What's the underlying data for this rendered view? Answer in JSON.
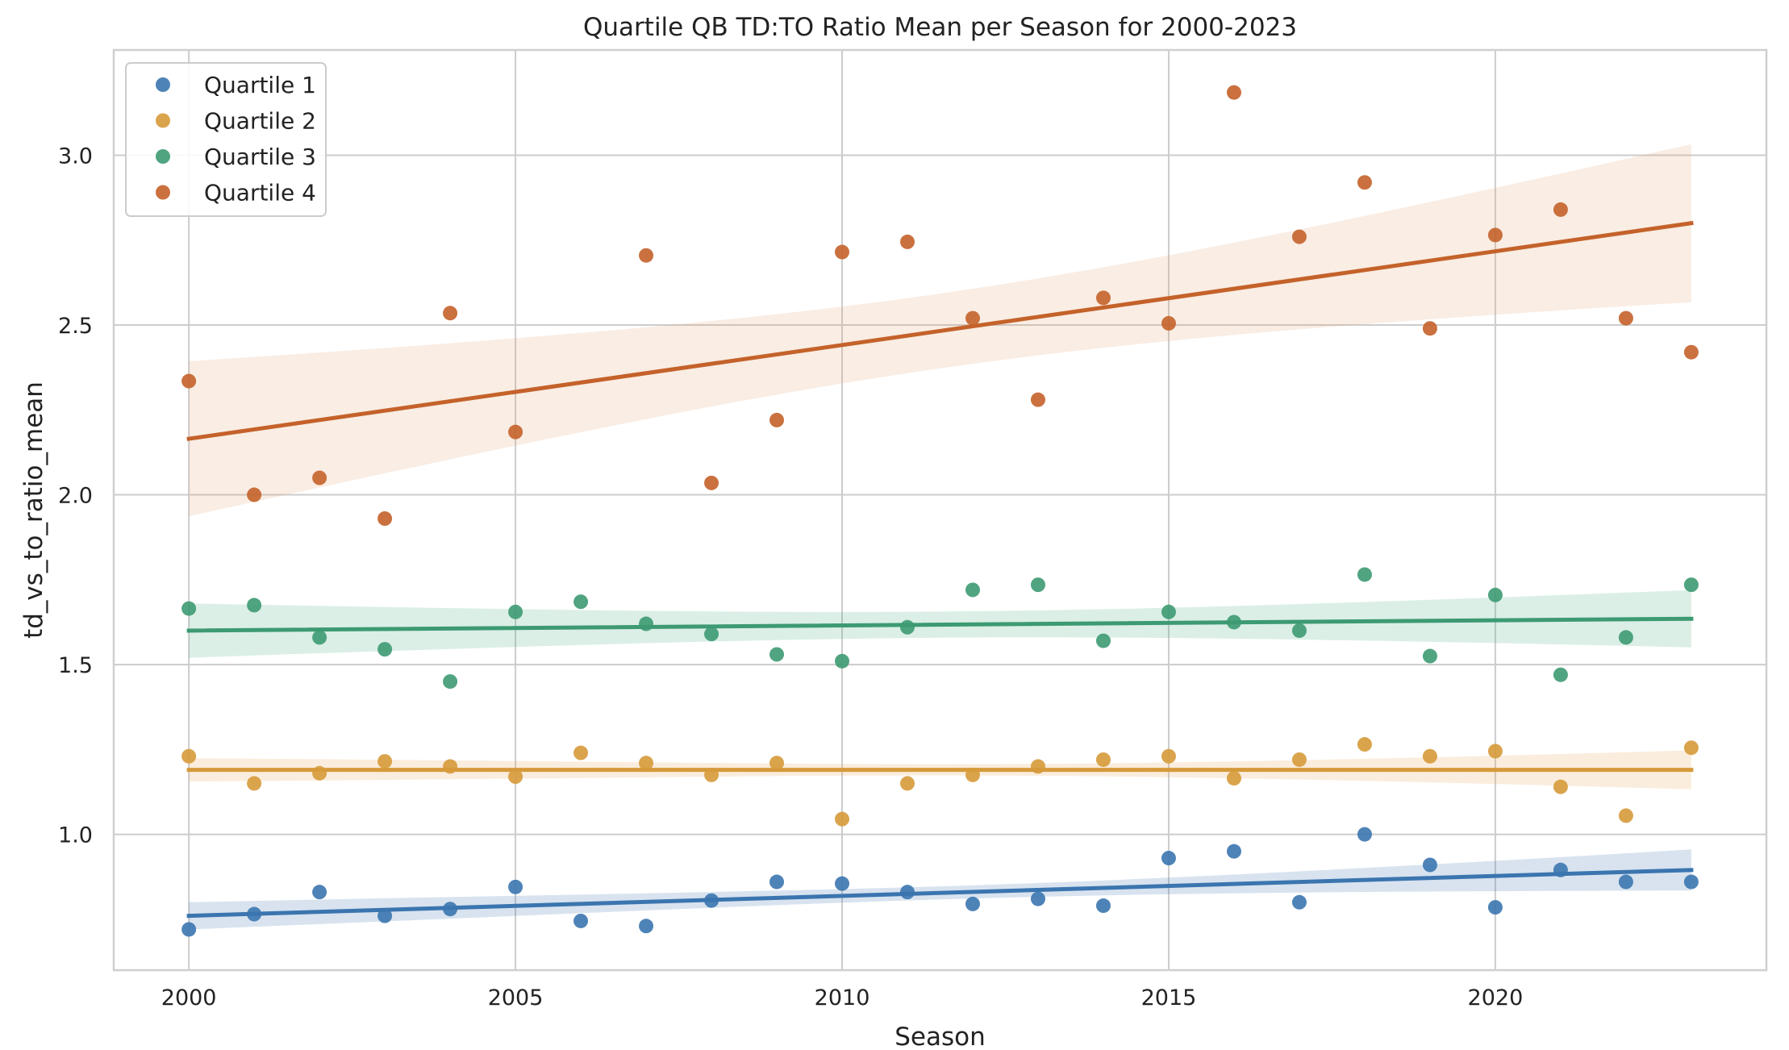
{
  "chart_data": {
    "type": "scatter",
    "title": "Quartile QB TD:TO Ratio Mean per Season for 2000-2023",
    "xlabel": "Season",
    "ylabel": "td_vs_to_ratio_mean",
    "xlim": [
      1998.85,
      2024.15
    ],
    "ylim": [
      0.6,
      3.31
    ],
    "x_ticks": [
      2000,
      2005,
      2010,
      2015,
      2020
    ],
    "y_ticks": [
      1.0,
      1.5,
      2.0,
      2.5,
      3.0
    ],
    "x_tick_labels": [
      "2000",
      "2005",
      "2010",
      "2015",
      "2020"
    ],
    "y_tick_labels": [
      "1.0",
      "1.5",
      "2.0",
      "2.5",
      "3.0"
    ],
    "grid": true,
    "legend_position": "top-left",
    "x": [
      2000,
      2001,
      2002,
      2003,
      2004,
      2005,
      2006,
      2007,
      2008,
      2009,
      2010,
      2011,
      2012,
      2013,
      2014,
      2015,
      2016,
      2017,
      2018,
      2019,
      2020,
      2021,
      2022,
      2023
    ],
    "series": [
      {
        "name": "Quartile 1",
        "color": "#3b75af",
        "band_color": "#3b75af",
        "values": [
          0.72,
          0.765,
          0.83,
          0.76,
          0.78,
          0.845,
          0.745,
          0.73,
          0.805,
          0.86,
          0.855,
          0.83,
          0.795,
          0.81,
          0.79,
          0.93,
          0.95,
          0.8,
          1.0,
          0.91,
          0.785,
          0.895,
          0.86,
          0.86
        ],
        "fit": {
          "start": 0.76,
          "end": 0.895
        },
        "ci_start": [
          0.725,
          0.795
        ],
        "ci_end": [
          0.84,
          0.955
        ]
      },
      {
        "name": "Quartile 2",
        "color": "#d69a3a",
        "band_color": "#e8a657",
        "values": [
          1.23,
          1.15,
          1.18,
          1.215,
          1.2,
          1.17,
          1.24,
          1.21,
          1.175,
          1.21,
          1.045,
          1.15,
          1.175,
          1.2,
          1.22,
          1.23,
          1.165,
          1.22,
          1.265,
          1.23,
          1.245,
          1.14,
          1.055,
          1.255
        ],
        "fit": {
          "start": 1.19,
          "end": 1.19
        },
        "ci_start": [
          1.16,
          1.22
        ],
        "ci_end": [
          1.135,
          1.245
        ]
      },
      {
        "name": "Quartile 3",
        "color": "#3d9a72",
        "band_color": "#4caf83",
        "values": [
          1.665,
          1.675,
          1.58,
          1.545,
          1.45,
          1.655,
          1.685,
          1.62,
          1.59,
          1.53,
          1.51,
          1.61,
          1.72,
          1.735,
          1.57,
          1.655,
          1.625,
          1.6,
          1.765,
          1.525,
          1.705,
          1.47,
          1.58,
          1.735
        ],
        "fit": {
          "start": 1.6,
          "end": 1.635
        },
        "ci_start": [
          1.53,
          1.67
        ],
        "ci_end": [
          1.56,
          1.71
        ]
      },
      {
        "name": "Quartile 4",
        "color": "#c4622a",
        "band_color": "#e0a477",
        "values": [
          2.335,
          2.0,
          2.05,
          1.93,
          2.535,
          2.185,
          null,
          2.705,
          2.035,
          2.22,
          2.715,
          2.745,
          2.52,
          2.28,
          2.58,
          2.505,
          3.185,
          2.76,
          2.92,
          2.49,
          2.765,
          2.84,
          2.52,
          2.42
        ],
        "fit": {
          "start": 2.165,
          "end": 2.8
        },
        "ci_start": [
          1.97,
          2.37
        ],
        "ci_end": [
          2.615,
          3.025
        ]
      }
    ]
  }
}
